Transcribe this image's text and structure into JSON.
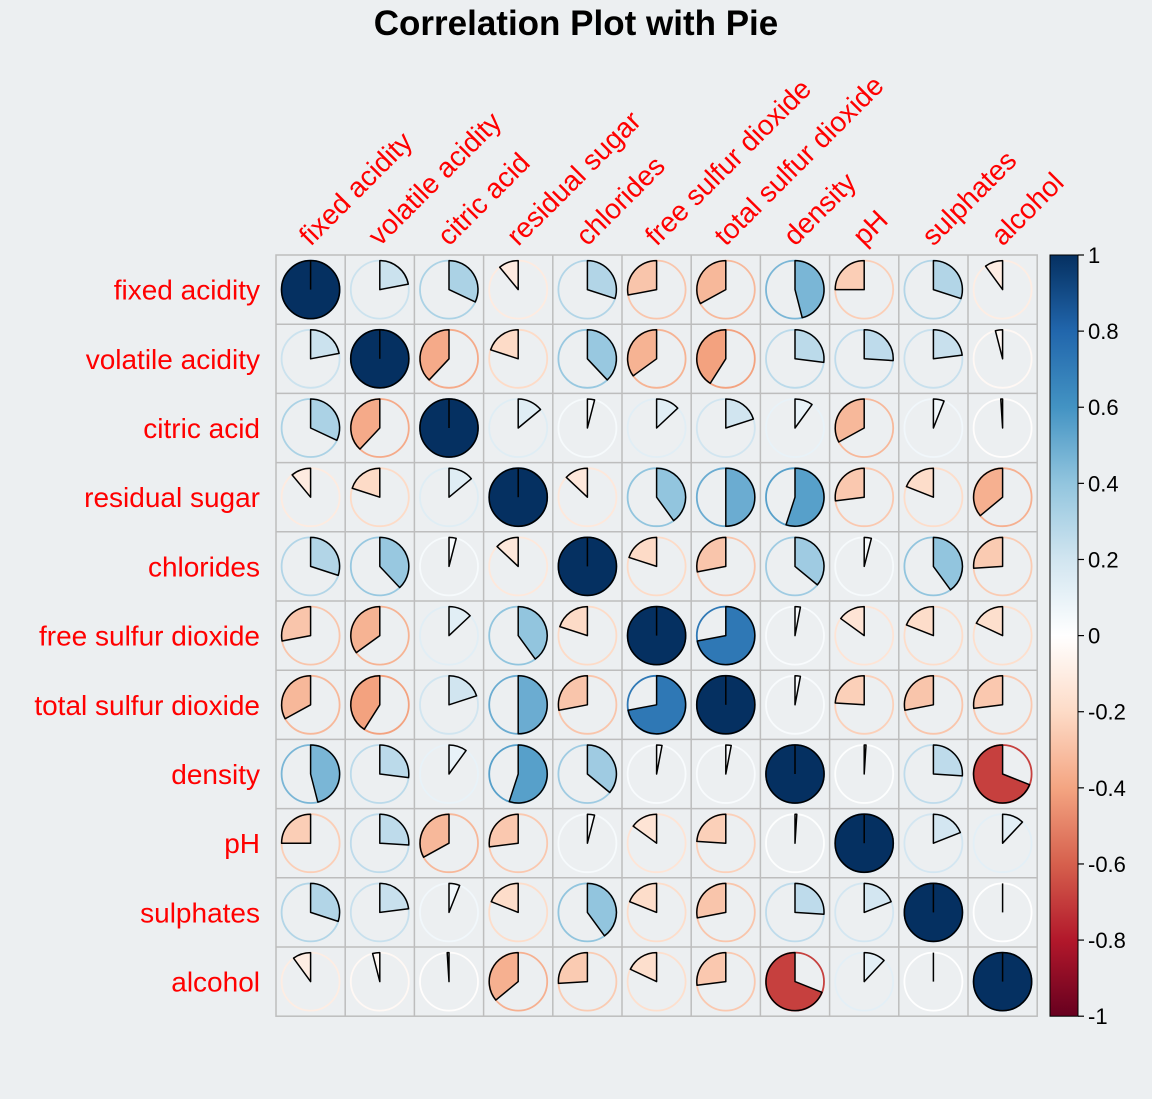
{
  "chart_data": {
    "type": "heatmap",
    "title": "Correlation Plot with Pie",
    "variables": [
      "fixed acidity",
      "volatile acidity",
      "citric acid",
      "residual sugar",
      "chlorides",
      "free sulfur dioxide",
      "total sulfur dioxide",
      "density",
      "pH",
      "sulphates",
      "alcohol"
    ],
    "matrix": [
      [
        1.0,
        0.22,
        0.32,
        -0.11,
        0.3,
        -0.28,
        -0.33,
        0.46,
        -0.25,
        0.3,
        -0.1
      ],
      [
        0.22,
        1.0,
        -0.38,
        -0.2,
        0.38,
        -0.35,
        -0.41,
        0.27,
        0.26,
        0.23,
        -0.04
      ],
      [
        0.32,
        -0.38,
        1.0,
        0.14,
        0.04,
        0.13,
        0.2,
        0.1,
        -0.33,
        0.06,
        -0.01
      ],
      [
        -0.11,
        -0.2,
        0.14,
        1.0,
        -0.13,
        0.4,
        0.5,
        0.55,
        -0.27,
        -0.19,
        -0.36
      ],
      [
        0.3,
        0.38,
        0.04,
        -0.13,
        1.0,
        -0.2,
        -0.28,
        0.36,
        0.04,
        0.4,
        -0.26
      ],
      [
        -0.28,
        -0.35,
        0.13,
        0.4,
        -0.2,
        1.0,
        0.72,
        0.03,
        -0.15,
        -0.19,
        -0.18
      ],
      [
        -0.33,
        -0.41,
        0.2,
        0.5,
        -0.28,
        0.72,
        1.0,
        0.03,
        -0.24,
        -0.28,
        -0.27
      ],
      [
        0.46,
        0.27,
        0.1,
        0.55,
        0.36,
        0.03,
        0.03,
        1.0,
        0.01,
        0.26,
        -0.69
      ],
      [
        -0.25,
        0.26,
        -0.33,
        -0.27,
        0.04,
        -0.15,
        -0.24,
        0.01,
        1.0,
        0.19,
        0.12
      ],
      [
        0.3,
        0.23,
        0.06,
        -0.19,
        0.4,
        -0.19,
        -0.28,
        0.26,
        0.19,
        1.0,
        -0.0
      ],
      [
        -0.1,
        -0.04,
        -0.01,
        -0.36,
        -0.26,
        -0.18,
        -0.27,
        -0.69,
        0.12,
        -0.0,
        1.0
      ]
    ],
    "label_color": "#FF0000",
    "colorbar": {
      "ticks": [
        "1",
        "0.8",
        "0.6",
        "0.4",
        "0.2",
        "0",
        "-0.2",
        "-0.4",
        "-0.6",
        "-0.8",
        "-1"
      ],
      "range": [
        -1,
        1
      ],
      "stops": [
        "#67001F",
        "#B2182B",
        "#D6604D",
        "#F4A582",
        "#FDDBC7",
        "#FFFFFF",
        "#D1E5F0",
        "#92C5DE",
        "#4393C3",
        "#2166AC",
        "#053061"
      ]
    }
  }
}
